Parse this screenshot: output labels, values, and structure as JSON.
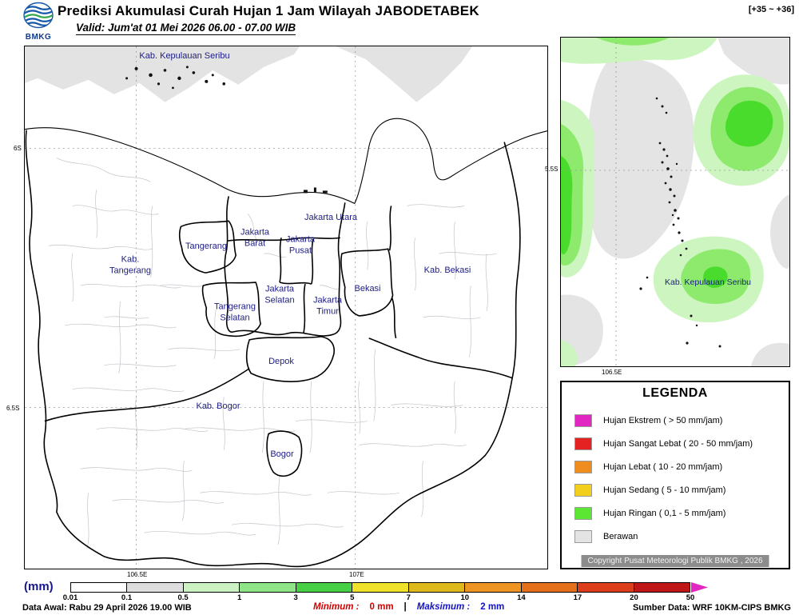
{
  "header": {
    "logo_text": "BMKG",
    "title": "Prediksi Akumulasi Curah Hujan 1 Jam Wilayah JABODETABEK",
    "valid_text": "Valid: Jum'at 01 Mei 2026 06.00 - 07.00 WIB",
    "forecast_hours": "[+35 ~ +36]"
  },
  "main_map": {
    "labels": [
      {
        "text": "Kab. Kepulauan Seribu"
      },
      {
        "text": "Jakarta Utara"
      },
      {
        "text": "Jakarta\nBarat"
      },
      {
        "text": "Jakarta\nPusat"
      },
      {
        "text": "Tangerang"
      },
      {
        "text": "Kab.\nTangerang"
      },
      {
        "text": "Kab. Bekasi"
      },
      {
        "text": "Bekasi"
      },
      {
        "text": "Jakarta\nSelatan"
      },
      {
        "text": "Jakarta\nTimur"
      },
      {
        "text": "Tangerang\nSelatan"
      },
      {
        "text": "Depok"
      },
      {
        "text": "Kab. Bogor"
      },
      {
        "text": "Bogor"
      }
    ],
    "y_ticks": [
      "6S",
      "6.5S"
    ],
    "x_ticks": [
      "106.5E",
      "107E"
    ]
  },
  "inset_map": {
    "label": "Kab. Kepulauan Seribu",
    "y_tick": "5.5S",
    "x_tick": "106.5E"
  },
  "legend": {
    "title": "LEGENDA",
    "items": [
      {
        "color": "#e226c2",
        "label": "Hujan Ekstrem ( > 50 mm/jam)"
      },
      {
        "color": "#e42222",
        "label": "Hujan Sangat Lebat ( 20 - 50 mm/jam)"
      },
      {
        "color": "#ef8c1e",
        "label": "Hujan Lebat ( 10 - 20 mm/jam)"
      },
      {
        "color": "#f2cf1c",
        "label": "Hujan Sedang ( 5 - 10 mm/jam)"
      },
      {
        "color": "#5ae632",
        "label": "Hujan Ringan ( 0,1 - 5 mm/jam)"
      },
      {
        "color": "#e4e4e4",
        "label": "Berawan"
      }
    ],
    "copyright": "Copyright Pusat Meteorologi Publik BMKG , 2026"
  },
  "colorbar": {
    "unit": "(mm)",
    "ticks": [
      "0.01",
      "0.1",
      "0.5",
      "1",
      "3",
      "5",
      "7",
      "10",
      "14",
      "17",
      "20",
      "50"
    ],
    "segments": [
      "#ffffff",
      "#dedede",
      "#ccf2c4",
      "#8fe487",
      "#47cf45",
      "#f0e22a",
      "#ddb91e",
      "#ee9423",
      "#e4701c",
      "#dc3d1b",
      "#bf1717"
    ],
    "arrow_color": "#e226c2"
  },
  "footer": {
    "data_awal": "Data Awal: Rabu 29 April 2026 19.00 WIB",
    "minimum_label": "Minimum :",
    "minimum_value": "0 mm",
    "separator": "|",
    "maksimum_label": "Maksimum :",
    "maksimum_value": "2 mm",
    "sumber_data": "Sumber Data: WRF 10KM-CIPS BMKG"
  }
}
